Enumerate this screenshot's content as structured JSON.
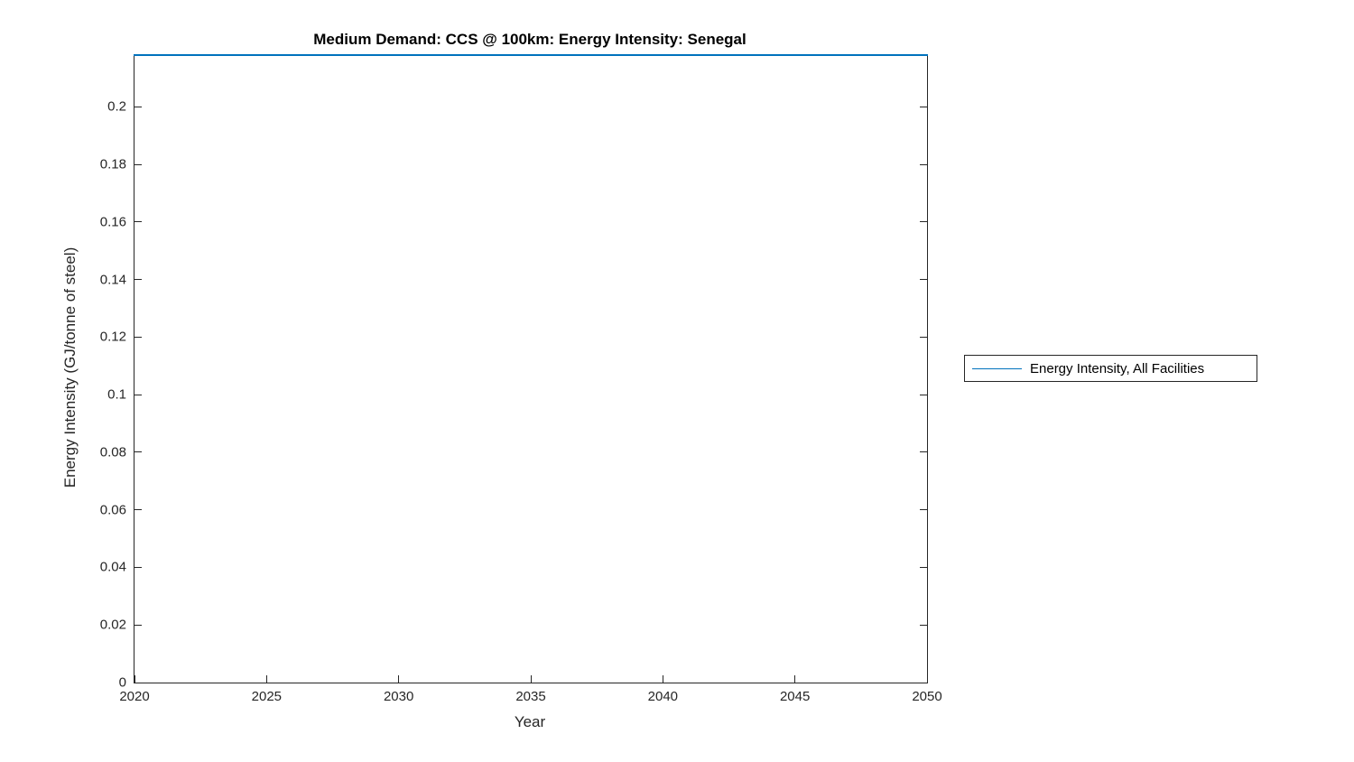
{
  "chart_data": {
    "type": "line",
    "title": "Medium Demand: CCS @ 100km: Energy Intensity: Senegal",
    "xlabel": "Year",
    "ylabel": "Energy Intensity (GJ/tonne of steel)",
    "xlim": [
      2020,
      2050
    ],
    "ylim": [
      0,
      0.218
    ],
    "xticks": [
      2020,
      2025,
      2030,
      2035,
      2040,
      2045,
      2050
    ],
    "yticks": [
      0,
      0.02,
      0.04,
      0.06,
      0.08,
      0.1,
      0.12,
      0.14,
      0.16,
      0.18,
      0.2
    ],
    "grid": false,
    "legend": {
      "position": "right-outside",
      "entries": [
        {
          "label": "Energy Intensity, All Facilities",
          "color": "#0072BD"
        }
      ]
    },
    "series": [
      {
        "name": "Energy Intensity, All Facilities",
        "color": "#0072BD",
        "x": [
          2020,
          2050
        ],
        "y": [
          0.218,
          0.218
        ]
      }
    ]
  },
  "colors": {
    "line": "#0072BD",
    "axis": "#262626",
    "background": "#ffffff"
  }
}
